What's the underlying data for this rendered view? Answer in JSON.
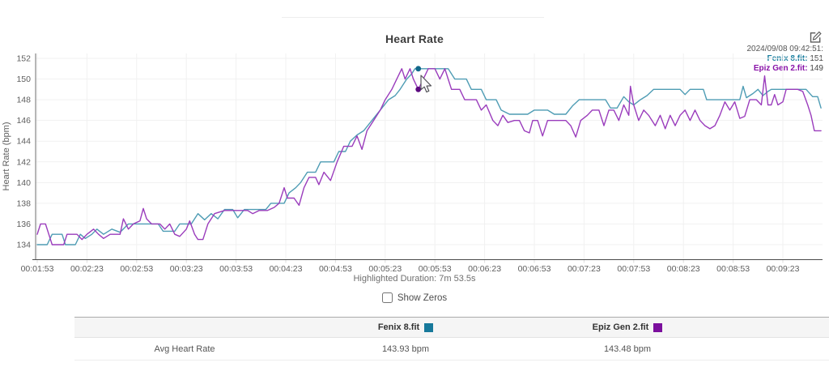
{
  "header": {
    "title": "Heart Rate"
  },
  "tooltip": {
    "timestamp": "2024/09/08 09:42:51:",
    "series": [
      {
        "label": "Fenix 8.fit:",
        "value": "151",
        "color": "#1a7f9f"
      },
      {
        "label": "Epiz Gen 2.fit:",
        "value": "149",
        "color": "#8912a8"
      }
    ]
  },
  "chart_data": {
    "type": "line",
    "title": "Heart Rate",
    "xlabel": "",
    "ylabel": "Heart Rate (bpm)",
    "ylim": [
      132.5,
      152.6
    ],
    "y_ticks": [
      134,
      136,
      138,
      140,
      142,
      144,
      146,
      148,
      150,
      152
    ],
    "x_tick_labels": [
      "00:01:53",
      "00:02:23",
      "00:02:53",
      "00:03:23",
      "00:03:53",
      "00:04:23",
      "00:04:53",
      "00:05:23",
      "00:05:53",
      "00:06:23",
      "00:06:53",
      "00:07:23",
      "00:07:53",
      "00:08:23",
      "00:08:53",
      "00:09:23"
    ],
    "x_tick_seconds": [
      113,
      143,
      173,
      203,
      233,
      263,
      293,
      323,
      353,
      383,
      413,
      443,
      473,
      503,
      533,
      563
    ],
    "x_range_seconds": [
      113,
      586
    ],
    "grid": true,
    "legend_position": "table-below",
    "series": [
      {
        "name": "Fenix 8.fit",
        "color": "#4e9cb4",
        "marker_color": "#11678a",
        "points": [
          [
            113,
            134
          ],
          [
            119,
            134
          ],
          [
            122,
            135
          ],
          [
            128,
            135
          ],
          [
            130,
            134
          ],
          [
            136,
            134
          ],
          [
            139,
            135
          ],
          [
            142,
            134.6
          ],
          [
            146,
            135
          ],
          [
            149,
            135.5
          ],
          [
            153,
            135
          ],
          [
            158,
            135.5
          ],
          [
            163,
            135.2
          ],
          [
            168,
            136
          ],
          [
            186,
            136
          ],
          [
            189,
            135.3
          ],
          [
            196,
            135.3
          ],
          [
            199,
            136
          ],
          [
            206,
            136
          ],
          [
            210,
            137
          ],
          [
            214,
            136.4
          ],
          [
            218,
            137
          ],
          [
            222,
            136.5
          ],
          [
            226,
            137.4
          ],
          [
            231,
            137.4
          ],
          [
            234,
            136.6
          ],
          [
            238,
            137.4
          ],
          [
            251,
            137.4
          ],
          [
            254,
            138
          ],
          [
            262,
            138
          ],
          [
            265,
            139
          ],
          [
            269,
            139.5
          ],
          [
            272,
            140
          ],
          [
            276,
            141
          ],
          [
            281,
            141
          ],
          [
            284,
            142
          ],
          [
            292,
            142
          ],
          [
            295,
            143
          ],
          [
            299,
            143
          ],
          [
            302,
            144
          ],
          [
            306,
            144.6
          ],
          [
            310,
            145
          ],
          [
            314,
            145.8
          ],
          [
            318,
            146.6
          ],
          [
            322,
            147.4
          ],
          [
            325,
            148
          ],
          [
            329,
            148.4
          ],
          [
            332,
            149
          ],
          [
            336,
            150
          ],
          [
            339,
            150.5
          ],
          [
            341,
            151
          ],
          [
            361,
            151
          ],
          [
            365,
            150
          ],
          [
            372,
            150
          ],
          [
            375,
            149
          ],
          [
            381,
            149
          ],
          [
            384,
            148
          ],
          [
            390,
            148
          ],
          [
            393,
            147
          ],
          [
            398,
            146.6
          ],
          [
            409,
            146.6
          ],
          [
            413,
            147
          ],
          [
            421,
            147
          ],
          [
            425,
            146.6
          ],
          [
            432,
            146.6
          ],
          [
            436,
            147.4
          ],
          [
            440,
            148
          ],
          [
            456,
            148
          ],
          [
            459,
            147.2
          ],
          [
            463,
            147.2
          ],
          [
            467,
            148.3
          ],
          [
            470,
            147.8
          ],
          [
            473,
            147.5
          ],
          [
            477,
            148
          ],
          [
            481,
            148.4
          ],
          [
            485,
            149
          ],
          [
            501,
            149
          ],
          [
            504,
            148.5
          ],
          [
            507,
            149
          ],
          [
            515,
            149
          ],
          [
            517,
            148
          ],
          [
            537,
            148
          ],
          [
            539,
            149.3
          ],
          [
            541,
            148.2
          ],
          [
            545,
            148.6
          ],
          [
            548,
            149
          ],
          [
            551,
            148.4
          ],
          [
            554,
            148.8
          ],
          [
            556,
            149
          ],
          [
            577,
            149
          ],
          [
            581,
            148.3
          ],
          [
            584,
            148.3
          ],
          [
            586,
            147.2
          ]
        ]
      },
      {
        "name": "Epiz Gen 2.fit",
        "color": "#9a3cbc",
        "marker_color": "#5c0a80",
        "points": [
          [
            113,
            135
          ],
          [
            115,
            136
          ],
          [
            118,
            136
          ],
          [
            120,
            135
          ],
          [
            122,
            134
          ],
          [
            129,
            134
          ],
          [
            131,
            135
          ],
          [
            137,
            135
          ],
          [
            140,
            134.5
          ],
          [
            143,
            135
          ],
          [
            147,
            135.5
          ],
          [
            150,
            135
          ],
          [
            153,
            134.6
          ],
          [
            157,
            135
          ],
          [
            163,
            135
          ],
          [
            165,
            136.5
          ],
          [
            168,
            135.5
          ],
          [
            171,
            136
          ],
          [
            175,
            136.3
          ],
          [
            177,
            137.5
          ],
          [
            179,
            136.5
          ],
          [
            182,
            136
          ],
          [
            187,
            136
          ],
          [
            190,
            135.5
          ],
          [
            193,
            136
          ],
          [
            196,
            135
          ],
          [
            199,
            134.8
          ],
          [
            203,
            135.5
          ],
          [
            205,
            136.3
          ],
          [
            208,
            135
          ],
          [
            210,
            134.5
          ],
          [
            213,
            134.5
          ],
          [
            216,
            136
          ],
          [
            220,
            137
          ],
          [
            226,
            137.3
          ],
          [
            240,
            137.3
          ],
          [
            243,
            137
          ],
          [
            247,
            137.3
          ],
          [
            252,
            137.3
          ],
          [
            256,
            137.6
          ],
          [
            259,
            138
          ],
          [
            262,
            139.5
          ],
          [
            264,
            138.5
          ],
          [
            268,
            138.5
          ],
          [
            271,
            137.8
          ],
          [
            274,
            139.5
          ],
          [
            277,
            140.5
          ],
          [
            281,
            140.5
          ],
          [
            283,
            139.8
          ],
          [
            286,
            141
          ],
          [
            290,
            140.2
          ],
          [
            294,
            142
          ],
          [
            298,
            143.5
          ],
          [
            303,
            143.5
          ],
          [
            306,
            144.5
          ],
          [
            309,
            143.2
          ],
          [
            312,
            145
          ],
          [
            316,
            146
          ],
          [
            320,
            147
          ],
          [
            323,
            148
          ],
          [
            327,
            149
          ],
          [
            330,
            150
          ],
          [
            333,
            151
          ],
          [
            335,
            150
          ],
          [
            338,
            151
          ],
          [
            340,
            150
          ],
          [
            343,
            149
          ],
          [
            346,
            150
          ],
          [
            349,
            151
          ],
          [
            353,
            151
          ],
          [
            356,
            150
          ],
          [
            359,
            151
          ],
          [
            361,
            150
          ],
          [
            363,
            149
          ],
          [
            368,
            149
          ],
          [
            371,
            148
          ],
          [
            378,
            148
          ],
          [
            381,
            147
          ],
          [
            384,
            147.5
          ],
          [
            388,
            146
          ],
          [
            391,
            145.5
          ],
          [
            394,
            146.5
          ],
          [
            397,
            145.8
          ],
          [
            401,
            146
          ],
          [
            404,
            146
          ],
          [
            407,
            145
          ],
          [
            410,
            144.8
          ],
          [
            412,
            146
          ],
          [
            415,
            146
          ],
          [
            418,
            144.5
          ],
          [
            421,
            146
          ],
          [
            427,
            146
          ],
          [
            432,
            146
          ],
          [
            435,
            145.5
          ],
          [
            438,
            144.4
          ],
          [
            441,
            146
          ],
          [
            445,
            146.5
          ],
          [
            448,
            147
          ],
          [
            452,
            147
          ],
          [
            455,
            145.5
          ],
          [
            458,
            147
          ],
          [
            461,
            147
          ],
          [
            464,
            146
          ],
          [
            467,
            147.5
          ],
          [
            470,
            146.5
          ],
          [
            471,
            149.3
          ],
          [
            473,
            147.5
          ],
          [
            476,
            146
          ],
          [
            479,
            147
          ],
          [
            482,
            146.5
          ],
          [
            486,
            145.5
          ],
          [
            489,
            146.5
          ],
          [
            492,
            145.2
          ],
          [
            495,
            146.5
          ],
          [
            498,
            145.5
          ],
          [
            501,
            146.5
          ],
          [
            504,
            147
          ],
          [
            507,
            146
          ],
          [
            510,
            147
          ],
          [
            513,
            146
          ],
          [
            516,
            145.5
          ],
          [
            519,
            145.2
          ],
          [
            522,
            145.5
          ],
          [
            525,
            146.5
          ],
          [
            528,
            147.8
          ],
          [
            531,
            147
          ],
          [
            534,
            147.8
          ],
          [
            537,
            146.2
          ],
          [
            540,
            146.4
          ],
          [
            543,
            148
          ],
          [
            547,
            148
          ],
          [
            550,
            147.5
          ],
          [
            552,
            150.3
          ],
          [
            554,
            147.5
          ],
          [
            556,
            147.5
          ],
          [
            558,
            148.5
          ],
          [
            560,
            147.5
          ],
          [
            563,
            147.8
          ],
          [
            565,
            149
          ],
          [
            572,
            149
          ],
          [
            575,
            148.8
          ],
          [
            578,
            147.5
          ],
          [
            580,
            146.5
          ],
          [
            582,
            145
          ],
          [
            586,
            145
          ]
        ]
      }
    ],
    "highlight_markers": [
      {
        "series_index": 0,
        "t": 343,
        "value": 151
      },
      {
        "series_index": 1,
        "t": 343,
        "value": 149
      }
    ]
  },
  "footer": {
    "highlighted_duration": "Highlighted Duration: 7m 53.5s",
    "show_zeros_label": "Show Zeros",
    "show_zeros_checked": false
  },
  "table": {
    "headers": [
      {
        "label": "",
        "swatch": ""
      },
      {
        "label": "Fenix 8.fit",
        "swatch": "#17799b"
      },
      {
        "label": "Epiz Gen 2.fit",
        "swatch": "#7b0f9d"
      }
    ],
    "rows": [
      {
        "metric": "Avg Heart Rate",
        "values": [
          "143.93 bpm",
          "143.48 bpm"
        ]
      }
    ]
  }
}
